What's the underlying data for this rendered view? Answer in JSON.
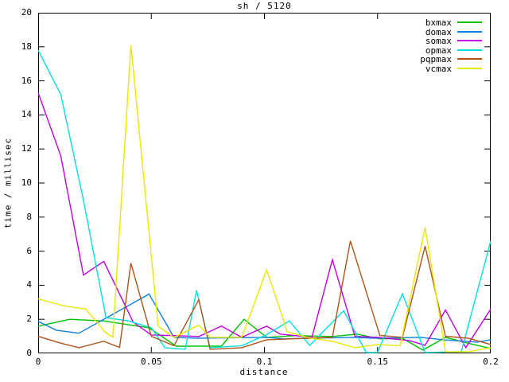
{
  "title": "sh / 5120",
  "chart_data": {
    "type": "line",
    "title": "sh / 5120",
    "xlabel": "distance",
    "ylabel": "time / millisec",
    "xlim": [
      0,
      0.2
    ],
    "ylim": [
      0,
      20
    ],
    "grid": false,
    "legend_position": "top-right-inside",
    "xticks": {
      "values": [
        0,
        0.05,
        0.1,
        0.15,
        0.2
      ],
      "labels": [
        "0",
        "0.05",
        "0.1",
        "0.15",
        "0.2"
      ]
    },
    "yticks": {
      "values": [
        0,
        2,
        4,
        6,
        8,
        10,
        12,
        14,
        16,
        18,
        20
      ],
      "labels": [
        "0",
        "2",
        "4",
        "6",
        "8",
        "10",
        "12",
        "14",
        "16",
        "18",
        "20"
      ]
    },
    "series": [
      {
        "name": "bxmax",
        "color": "#00c000",
        "points": [
          [
            0,
            1.6
          ],
          [
            0.014,
            2.0
          ],
          [
            0.029,
            1.9
          ],
          [
            0.049,
            1.5
          ],
          [
            0.061,
            0.42
          ],
          [
            0.081,
            0.42
          ],
          [
            0.091,
            2.0
          ],
          [
            0.101,
            0.94
          ],
          [
            0.114,
            1.04
          ],
          [
            0.13,
            0.99
          ],
          [
            0.141,
            1.13
          ],
          [
            0.151,
            0.85
          ],
          [
            0.161,
            0.89
          ],
          [
            0.17,
            0.19
          ],
          [
            0.18,
            0.94
          ],
          [
            0.19,
            0.6
          ],
          [
            0.2,
            0.28
          ]
        ]
      },
      {
        "name": "domax",
        "color": "#1080e0",
        "points": [
          [
            0,
            1.88
          ],
          [
            0.008,
            1.36
          ],
          [
            0.018,
            1.18
          ],
          [
            0.049,
            3.48
          ],
          [
            0.06,
            0.94
          ],
          [
            0.071,
            0.89
          ],
          [
            0.101,
            0.94
          ],
          [
            0.109,
            0.85
          ],
          [
            0.119,
            0.89
          ],
          [
            0.139,
            0.94
          ],
          [
            0.149,
            0.89
          ],
          [
            0.169,
            0.94
          ],
          [
            0.179,
            0.8
          ],
          [
            0.194,
            0.66
          ],
          [
            0.2,
            0.8
          ]
        ]
      },
      {
        "name": "somax",
        "color": "#c000e0",
        "points": [
          [
            0,
            15.3
          ],
          [
            0.01,
            11.6
          ],
          [
            0.02,
            4.6
          ],
          [
            0.029,
            5.4
          ],
          [
            0.042,
            1.83
          ],
          [
            0.05,
            1.08
          ],
          [
            0.06,
            1.04
          ],
          [
            0.071,
            0.99
          ],
          [
            0.081,
            1.6
          ],
          [
            0.09,
            0.94
          ],
          [
            0.101,
            1.6
          ],
          [
            0.107,
            1.13
          ],
          [
            0.121,
            0.94
          ],
          [
            0.13,
            5.5
          ],
          [
            0.14,
            1.0
          ],
          [
            0.15,
            0.94
          ],
          [
            0.164,
            0.75
          ],
          [
            0.171,
            0.47
          ],
          [
            0.18,
            2.54
          ],
          [
            0.189,
            0.33
          ],
          [
            0.2,
            2.6
          ]
        ]
      },
      {
        "name": "opmax",
        "color": "#00e0e0",
        "points": [
          [
            0,
            17.8
          ],
          [
            0.01,
            15.2
          ],
          [
            0.02,
            9.0
          ],
          [
            0.03,
            2.1
          ],
          [
            0.04,
            1.9
          ],
          [
            0.05,
            1.5
          ],
          [
            0.056,
            0.33
          ],
          [
            0.065,
            0.24
          ],
          [
            0.07,
            3.7
          ],
          [
            0.076,
            0.33
          ],
          [
            0.09,
            0.45
          ],
          [
            0.101,
            1.1
          ],
          [
            0.111,
            1.9
          ],
          [
            0.12,
            0.47
          ],
          [
            0.135,
            2.5
          ],
          [
            0.145,
            0.05
          ],
          [
            0.15,
            0.05
          ],
          [
            0.161,
            3.5
          ],
          [
            0.171,
            0.05
          ],
          [
            0.187,
            0.1
          ],
          [
            0.2,
            6.6
          ]
        ]
      },
      {
        "name": "pqpmax",
        "color": "#b0521a",
        "points": [
          [
            0,
            1.0
          ],
          [
            0.01,
            0.6
          ],
          [
            0.018,
            0.33
          ],
          [
            0.029,
            0.71
          ],
          [
            0.036,
            0.35
          ],
          [
            0.041,
            5.3
          ],
          [
            0.05,
            1.0
          ],
          [
            0.06,
            0.45
          ],
          [
            0.071,
            3.15
          ],
          [
            0.076,
            0.24
          ],
          [
            0.09,
            0.33
          ],
          [
            0.101,
            0.8
          ],
          [
            0.13,
            0.94
          ],
          [
            0.138,
            6.6
          ],
          [
            0.151,
            1.05
          ],
          [
            0.161,
            0.94
          ],
          [
            0.171,
            6.3
          ],
          [
            0.18,
            1.0
          ],
          [
            0.19,
            0.89
          ],
          [
            0.2,
            0.52
          ]
        ]
      },
      {
        "name": "vcmax",
        "color": "#e8e800",
        "points": [
          [
            0,
            3.2
          ],
          [
            0.011,
            2.8
          ],
          [
            0.021,
            2.6
          ],
          [
            0.03,
            1.2
          ],
          [
            0.033,
            0.95
          ],
          [
            0.041,
            18.1
          ],
          [
            0.053,
            1.6
          ],
          [
            0.06,
            0.94
          ],
          [
            0.071,
            1.65
          ],
          [
            0.076,
            0.94
          ],
          [
            0.09,
            0.94
          ],
          [
            0.101,
            4.9
          ],
          [
            0.107,
            2.54
          ],
          [
            0.11,
            1.27
          ],
          [
            0.12,
            0.9
          ],
          [
            0.13,
            0.71
          ],
          [
            0.14,
            0.33
          ],
          [
            0.15,
            0.52
          ],
          [
            0.16,
            0.45
          ],
          [
            0.171,
            7.4
          ],
          [
            0.18,
            0.09
          ],
          [
            0.19,
            0.09
          ],
          [
            0.2,
            0.33
          ]
        ]
      }
    ]
  }
}
